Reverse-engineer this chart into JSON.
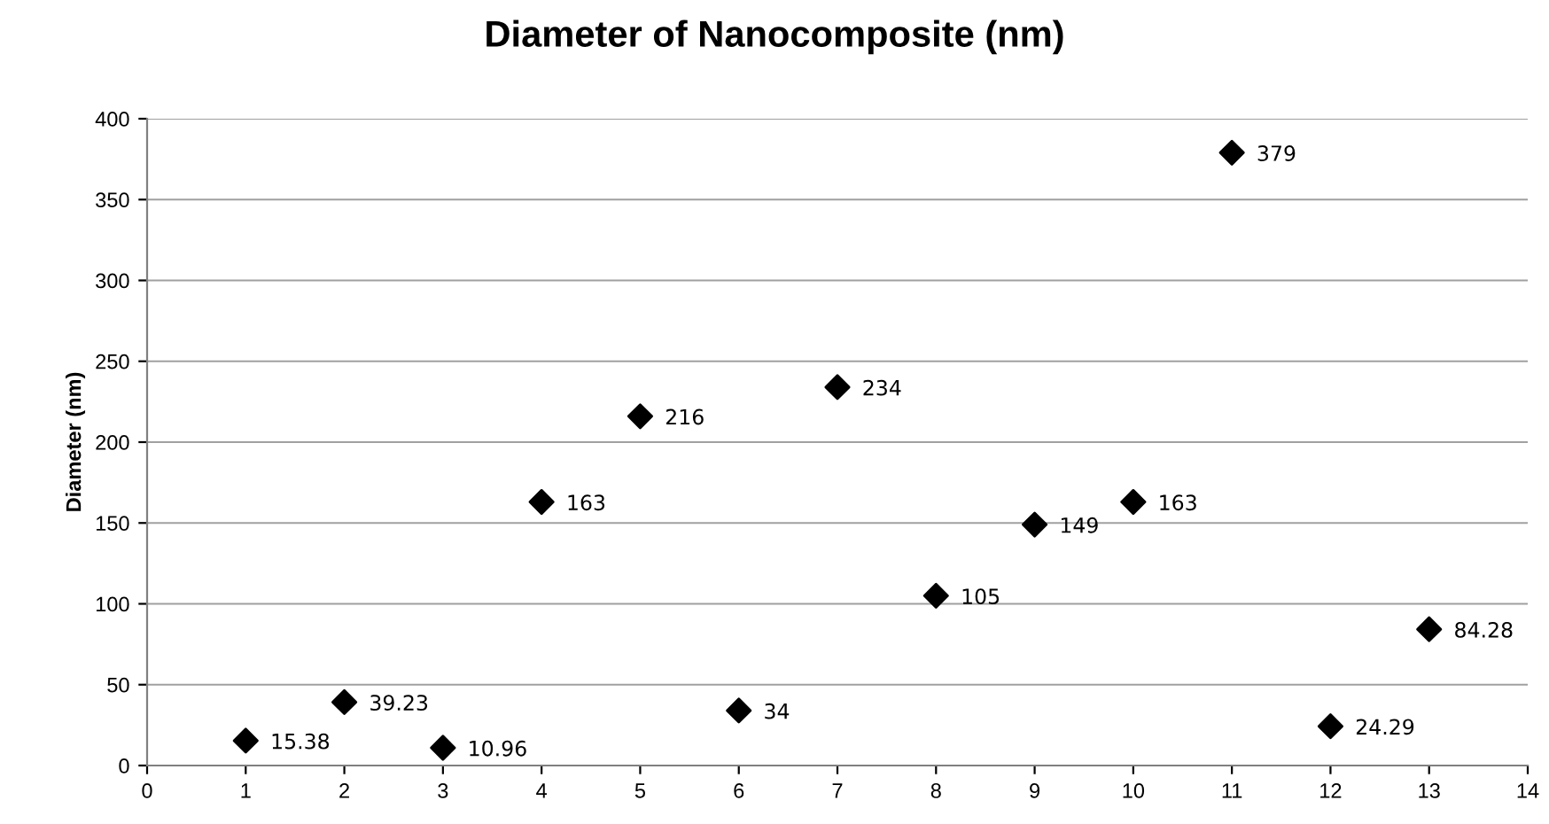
{
  "chart_data": {
    "type": "scatter",
    "title": "Diameter of Nanocomposite (nm)",
    "ylabel": "Diameter (nm)",
    "x": [
      1,
      2,
      3,
      4,
      5,
      6,
      7,
      8,
      9,
      10,
      11,
      12,
      13
    ],
    "series": [
      {
        "color": "#000000",
        "values": [
          15.38,
          39.23,
          10.96,
          163,
          216,
          34,
          234,
          105,
          149,
          163,
          379,
          24.29,
          84.28
        ]
      }
    ],
    "xlim": [
      0,
      14
    ],
    "xticks": [
      0,
      1,
      2,
      3,
      4,
      5,
      6,
      7,
      8,
      9,
      10,
      11,
      12,
      13,
      14
    ],
    "ylim": [
      0,
      400
    ],
    "yticks": [
      0,
      50,
      100,
      150,
      200,
      250,
      300,
      350,
      400
    ],
    "grid": "y",
    "marker": "diamond",
    "data_labels": true
  }
}
